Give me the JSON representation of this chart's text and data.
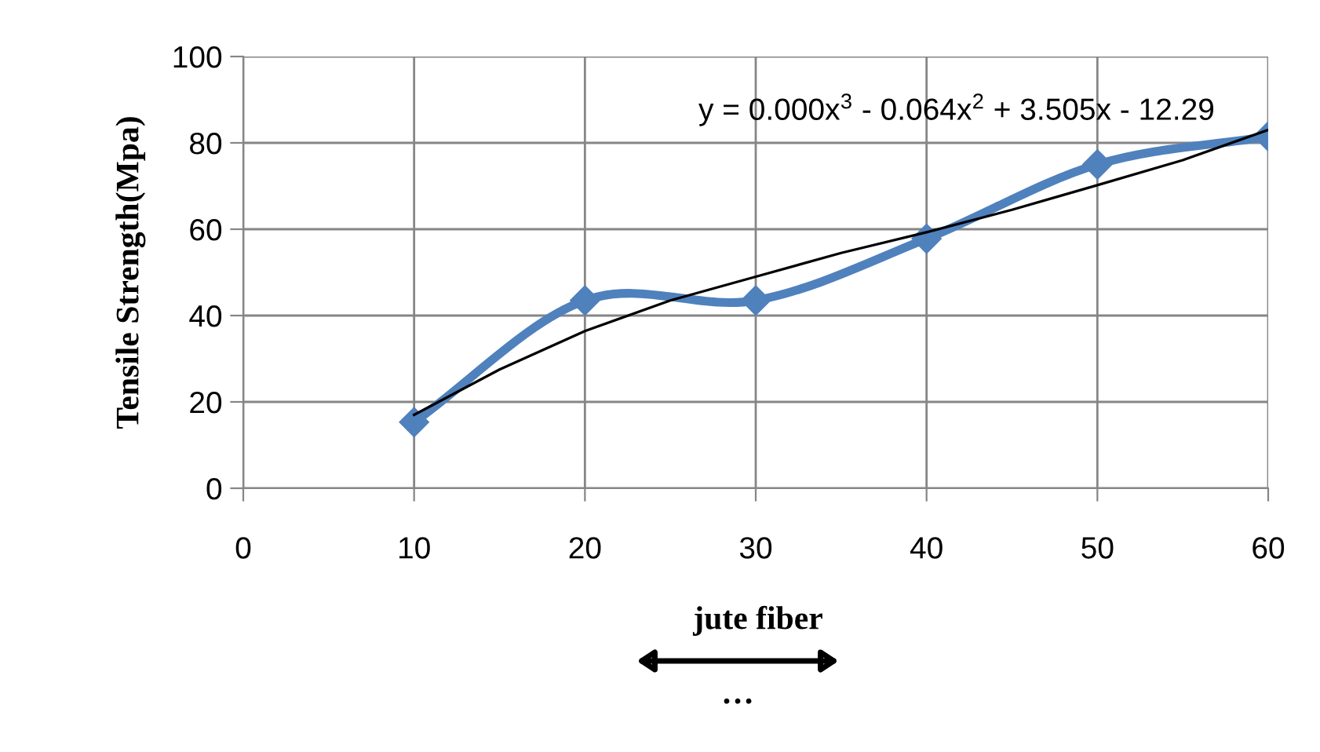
{
  "chart_data": {
    "type": "line",
    "xlabel": "jute fiber",
    "ylabel": "Tensile Strength(Mpa)",
    "xlim": [
      0,
      60
    ],
    "ylim": [
      0,
      100
    ],
    "xticks": [
      0,
      10,
      20,
      30,
      40,
      50,
      60
    ],
    "yticks": [
      0,
      20,
      40,
      60,
      80,
      100
    ],
    "grid": true,
    "marker": "diamond",
    "line_style": "solid",
    "series": [
      {
        "x": [
          10,
          20,
          30,
          40,
          50,
          60
        ],
        "values": [
          15.3,
          43.5,
          43.5,
          57.8,
          75,
          81.5
        ],
        "color": "#4f81bd"
      },
      {
        "type": "line",
        "x": [
          10,
          15,
          20,
          25,
          30,
          35,
          40,
          45,
          50,
          55,
          60
        ],
        "values": [
          17,
          27.5,
          36.4,
          43.5,
          49,
          54.5,
          59.3,
          64.5,
          70.2,
          76,
          83
        ],
        "color": "#000000",
        "marker": "none"
      }
    ],
    "annotations": [
      "y = 0.000x$^{3}$ - 0.064x$^{2}$ + 3.505x - 12.29",
      "…"
    ]
  }
}
